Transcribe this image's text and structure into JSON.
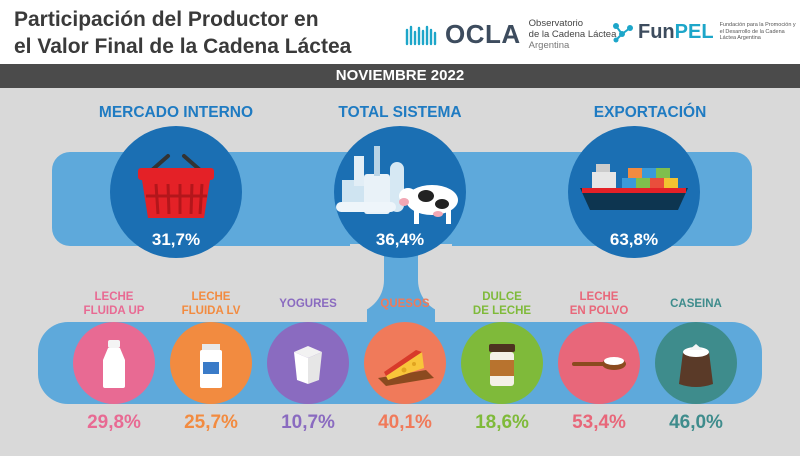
{
  "header": {
    "title_line1": "Participación del Productor en",
    "title_line2": "el Valor Final de la Cadena Láctea",
    "ocla": {
      "name": "OCLA",
      "sub1": "Observatorio",
      "sub2": "de la Cadena Láctea",
      "sub3": "Argentina"
    },
    "funpel": {
      "name_a": "Fun",
      "name_b": "PEL",
      "sub": "Fundación para la Promoción y el Desarrollo de la Cadena Láctea Argentina"
    }
  },
  "banner": "NOVIEMBRE 2022",
  "categories": [
    {
      "label": "MERCADO INTERNO",
      "value": "31,7%",
      "icon": "basket-icon"
    },
    {
      "label": "TOTAL SISTEMA",
      "value": "36,4%",
      "icon": "dairy-plant-cow-icon"
    },
    {
      "label": "EXPORTACIÓN",
      "value": "63,8%",
      "icon": "cargo-ship-icon"
    }
  ],
  "products": [
    {
      "label1": "LECHE",
      "label2": "FLUIDA UP",
      "value": "29,8%",
      "color": "#e86a93",
      "icon": "milk-bottle-icon"
    },
    {
      "label1": "LECHE",
      "label2": "FLUIDA LV",
      "value": "25,7%",
      "color": "#f28b40",
      "icon": "milk-carton-icon"
    },
    {
      "label1": "YOGURES",
      "label2": "",
      "value": "10,7%",
      "color": "#8a6bc0",
      "icon": "yogurt-cup-icon"
    },
    {
      "label1": "QUESOS",
      "label2": "",
      "value": "40,1%",
      "color": "#f07a5a",
      "icon": "cheese-icon"
    },
    {
      "label1": "DULCE",
      "label2": "DE LECHE",
      "value": "18,6%",
      "color": "#7fba3a",
      "icon": "dulce-jar-icon"
    },
    {
      "label1": "LECHE",
      "label2": "EN POLVO",
      "value": "53,4%",
      "color": "#e8677a",
      "icon": "powder-spoon-icon"
    },
    {
      "label1": "CASEINA",
      "label2": "",
      "value": "46,0%",
      "color": "#3e8c8c",
      "icon": "casein-sack-icon"
    }
  ]
}
